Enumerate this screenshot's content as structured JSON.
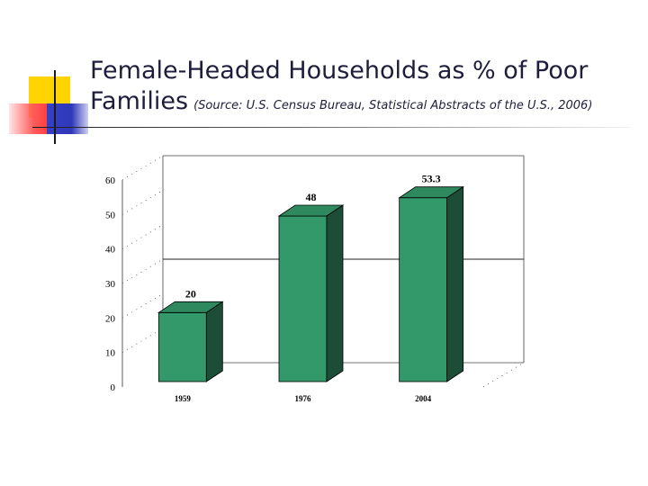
{
  "slide": {
    "title_main": "Female-Headed Households as % of Poor Families",
    "title_source": "(Source: U.S. Census Bureau, Statistical Abstracts of the U.S., 2006)"
  },
  "chart_data": {
    "type": "bar",
    "style": "3d",
    "categories": [
      "1959",
      "1976",
      "2004"
    ],
    "values": [
      20,
      48,
      53.3
    ],
    "value_labels": [
      "20",
      "48",
      "53.3"
    ],
    "ylim": [
      0,
      60
    ],
    "yticks": [
      "0",
      "10",
      "20",
      "30",
      "40",
      "50",
      "60"
    ],
    "reference_line": 30,
    "colors": {
      "bar_front": "#33996a",
      "bar_top": "#2e8a5e",
      "bar_side": "#1d4d36"
    }
  }
}
